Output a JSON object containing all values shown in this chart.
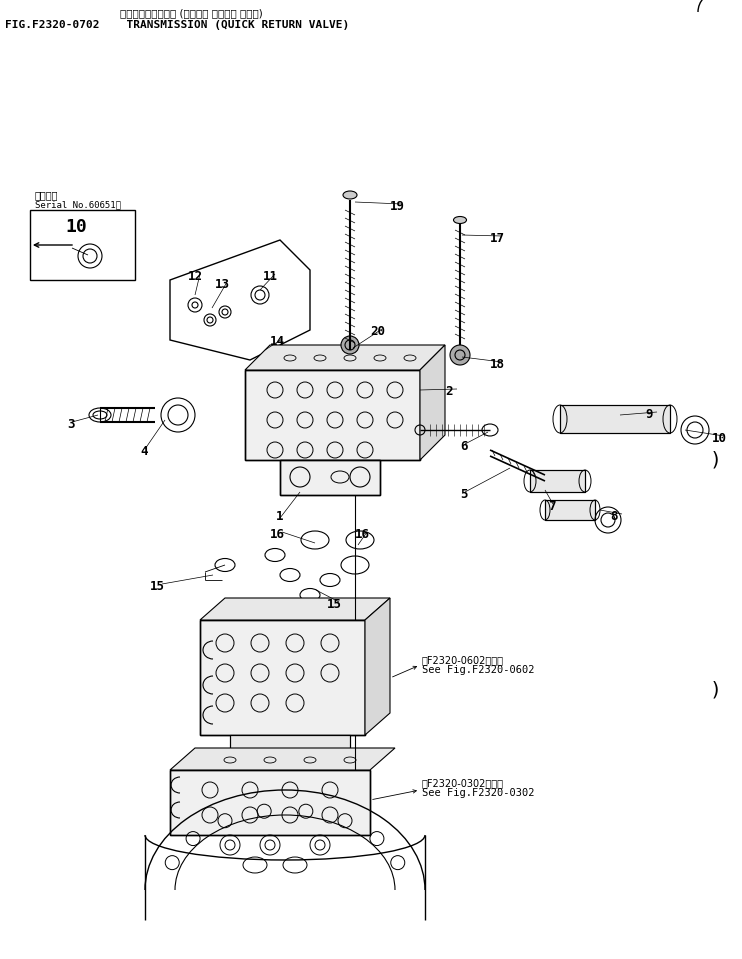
{
  "title_jp": "トランスミッション (クイック リターン バルブ)",
  "title_en": "FIG.F2320-0702    TRANSMISSION (QUICK RETURN VALVE)",
  "serial_jp": "適用号機",
  "serial_en": "Serial No.60651～",
  "see_0602_jp": "第F2320-0602図参照",
  "see_0602_en": "See Fig.F2320-0602",
  "see_0302_jp": "第F2320-0302図参照",
  "see_0302_en": "See Fig.F2320-0302",
  "bg": "#ffffff",
  "fg": "#000000",
  "figsize": [
    7.42,
    9.59
  ],
  "dpi": 100
}
